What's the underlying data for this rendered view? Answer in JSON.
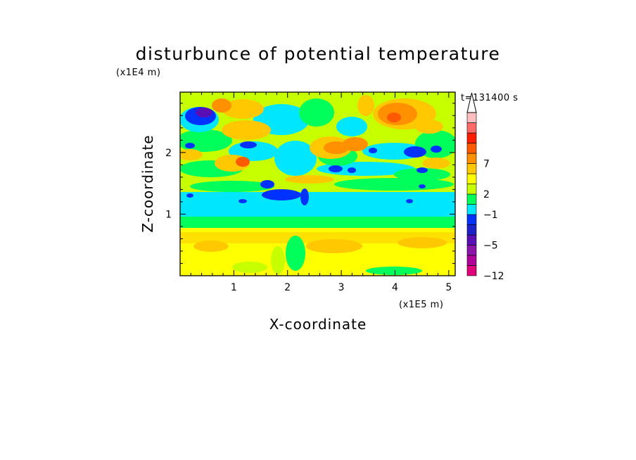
{
  "chart_data": {
    "type": "heatmap",
    "title": "disturbunce of potential temperature",
    "time_label": "t=131400 s",
    "xlabel": "X-coordinate",
    "ylabel": "Z-coordinate",
    "x_unit_label": "(x1E5 m)",
    "y_unit_label": "(x1E4 m)",
    "xlim": [
      0,
      5.12
    ],
    "ylim": [
      0,
      2.98
    ],
    "x_ticks": [
      {
        "value": 1,
        "label": "1"
      },
      {
        "value": 2,
        "label": "2"
      },
      {
        "value": 3,
        "label": "3"
      },
      {
        "value": 4,
        "label": "4"
      },
      {
        "value": 5,
        "label": "5"
      }
    ],
    "y_ticks": [
      {
        "value": 1,
        "label": "1"
      },
      {
        "value": 2,
        "label": "2"
      }
    ],
    "colorbar": {
      "levels": [
        "-12",
        "",
        "",
        "-5",
        "",
        "",
        "-1",
        "",
        "2",
        "",
        "",
        "7",
        "",
        "",
        "",
        ""
      ],
      "colors": [
        "#e0007a",
        "#b0009a",
        "#8c14a8",
        "#5a0fb4",
        "#1e23c8",
        "#0032ff",
        "#00e6ff",
        "#00ff5a",
        "#c8ff00",
        "#ffff00",
        "#ffc800",
        "#ff9000",
        "#ff5a00",
        "#ff1e00",
        "#ff6a6a",
        "#ffbfbf"
      ],
      "labels": [
        {
          "after_index": 0,
          "text": "-12"
        },
        {
          "after_index": 3,
          "text": "-5"
        },
        {
          "after_index": 6,
          "text": "-1"
        },
        {
          "after_index": 8,
          "text": "2"
        },
        {
          "after_index": 11,
          "text": "7"
        }
      ],
      "extend": "max"
    },
    "field_layers": [
      {
        "z_range": [
          0,
          0.75
        ],
        "dominant": "yellow (0 to 2)"
      },
      {
        "z_range": [
          0.75,
          0.95
        ],
        "dominant": "green (-1 to 0)"
      },
      {
        "z_range": [
          0.95,
          1.35
        ],
        "dominant": "cyan (-2 to -1)"
      },
      {
        "z_range": [
          1.35,
          2.98
        ],
        "dominant": "mixed, values -6 to 6"
      }
    ]
  }
}
